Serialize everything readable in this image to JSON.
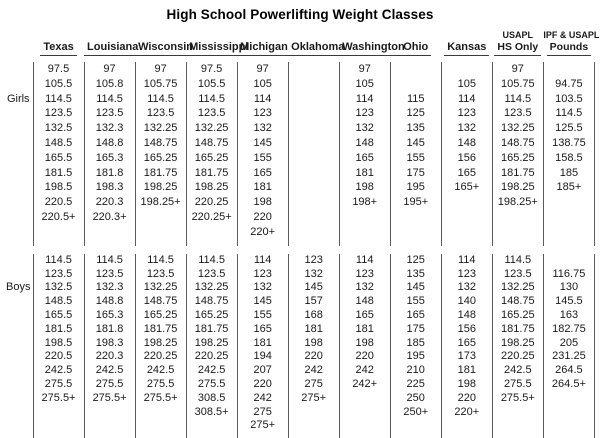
{
  "title": "High School Powerlifting Weight Classes",
  "colors": {
    "text": "#1a1a1a",
    "line": "#5a5a5a",
    "title": "#000000"
  },
  "columns": [
    {
      "top": "",
      "name": "Texas"
    },
    {
      "top": "",
      "name": "Louisiana"
    },
    {
      "top": "",
      "name": "Wisconsin"
    },
    {
      "top": "",
      "name": "Mississippi"
    },
    {
      "top": "",
      "name": "Michigan"
    },
    {
      "top": "",
      "name": "Oklahoma"
    },
    {
      "top": "",
      "name": "Washington"
    },
    {
      "top": "",
      "name": "Ohio"
    },
    {
      "top": "",
      "name": "Kansas"
    },
    {
      "top": "USAPL",
      "name": "HS Only"
    },
    {
      "top": "IPF & USAPL",
      "name": "Pounds"
    }
  ],
  "sections": {
    "girls": {
      "label": "Girls",
      "rows": [
        [
          "97.5",
          "97",
          "97",
          "97.5",
          "97",
          "",
          "97",
          "",
          "",
          "97",
          ""
        ],
        [
          "105.5",
          "105.8",
          "105.75",
          "105.5",
          "105",
          "",
          "105",
          "",
          "105",
          "105.75",
          "94.75"
        ],
        [
          "114.5",
          "114.5",
          "114.5",
          "114.5",
          "114",
          "",
          "114",
          "115",
          "114",
          "114.5",
          "103.5"
        ],
        [
          "123.5",
          "123.5",
          "123.5",
          "123.5",
          "123",
          "",
          "123",
          "125",
          "123",
          "123.5",
          "114.5"
        ],
        [
          "132.5",
          "132.3",
          "132.25",
          "132.25",
          "132",
          "",
          "132",
          "135",
          "132",
          "132.25",
          "125.5"
        ],
        [
          "148.5",
          "148.8",
          "148.75",
          "148.75",
          "145",
          "",
          "148",
          "145",
          "148",
          "148.75",
          "138.75"
        ],
        [
          "165.5",
          "165.3",
          "165.25",
          "165.25",
          "155",
          "",
          "165",
          "155",
          "156",
          "165.25",
          "158.5"
        ],
        [
          "181.5",
          "181.8",
          "181.75",
          "181.75",
          "165",
          "",
          "181",
          "175",
          "165",
          "181.75",
          "185"
        ],
        [
          "198.5",
          "198.3",
          "198.25",
          "198.25",
          "181",
          "",
          "198",
          "195",
          "165+",
          "198.25",
          "185+"
        ],
        [
          "220.5",
          "220.3",
          "198.25+",
          "220.25",
          "198",
          "",
          "198+",
          "195+",
          "",
          "198.25+",
          ""
        ],
        [
          "220.5+",
          "220.3+",
          "",
          "220.25+",
          "220",
          "",
          "",
          "",
          "",
          "",
          ""
        ],
        [
          "",
          "",
          "",
          "",
          "220+",
          "",
          "",
          "",
          "",
          "",
          ""
        ]
      ]
    },
    "boys": {
      "label": "Boys",
      "rows": [
        [
          "114.5",
          "114.5",
          "114.5",
          "114.5",
          "114",
          "123",
          "114",
          "125",
          "114",
          "114.5",
          ""
        ],
        [
          "123.5",
          "123.5",
          "123.5",
          "123.5",
          "123",
          "132",
          "123",
          "135",
          "123",
          "123.5",
          "116.75"
        ],
        [
          "132.5",
          "132.3",
          "132.25",
          "132.25",
          "132",
          "145",
          "132",
          "145",
          "132",
          "132.25",
          "130"
        ],
        [
          "148.5",
          "148.8",
          "148.75",
          "148.75",
          "145",
          "157",
          "148",
          "155",
          "140",
          "148.75",
          "145.5"
        ],
        [
          "165.5",
          "165.3",
          "165.25",
          "165.25",
          "155",
          "168",
          "165",
          "165",
          "148",
          "165.25",
          "163"
        ],
        [
          "181.5",
          "181.8",
          "181.75",
          "181.75",
          "165",
          "181",
          "181",
          "175",
          "156",
          "181.75",
          "182.75"
        ],
        [
          "198.5",
          "198.3",
          "198.25",
          "198.25",
          "181",
          "198",
          "198",
          "185",
          "165",
          "198.25",
          "205"
        ],
        [
          "220.5",
          "220.3",
          "220.25",
          "220.25",
          "194",
          "220",
          "220",
          "195",
          "173",
          "220.25",
          "231.25"
        ],
        [
          "242.5",
          "242.5",
          "242.5",
          "242.5",
          "207",
          "242",
          "242",
          "210",
          "181",
          "242.5",
          "264.5"
        ],
        [
          "275.5",
          "275.5",
          "275.5",
          "275.5",
          "220",
          "275",
          "242+",
          "225",
          "198",
          "275.5",
          "264.5+"
        ],
        [
          "275.5+",
          "275.5+",
          "275.5+",
          "308.5",
          "242",
          "275+",
          "",
          "250",
          "220",
          "275.5+",
          ""
        ],
        [
          "",
          "",
          "",
          "308.5+",
          "275",
          "",
          "",
          "250+",
          "220+",
          "",
          ""
        ],
        [
          "",
          "",
          "",
          "",
          "275+",
          "",
          "",
          "",
          "",
          "",
          ""
        ]
      ]
    }
  }
}
